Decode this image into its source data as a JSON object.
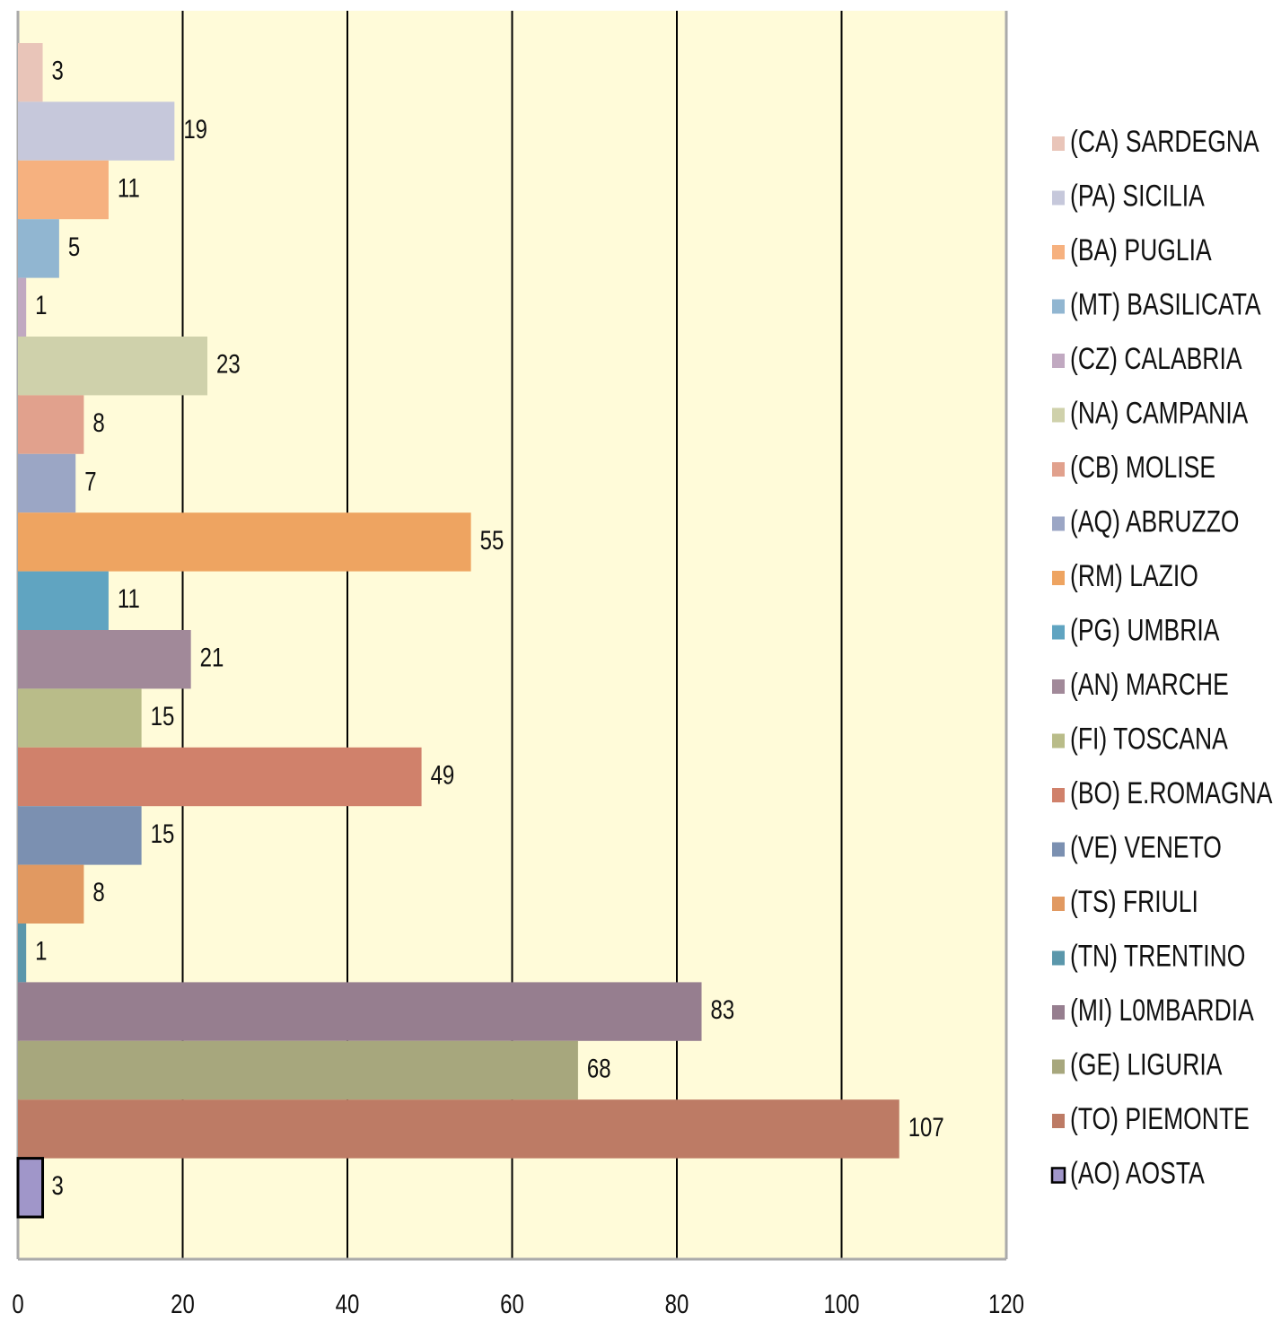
{
  "chart_data": {
    "type": "bar",
    "orientation": "horizontal",
    "xlim": [
      0,
      120
    ],
    "xticks": [
      0,
      20,
      40,
      60,
      80,
      100,
      120
    ],
    "grid": true,
    "legend": "right",
    "background": "#fffbd9",
    "series": [
      {
        "name": "(CA) SARDEGNA",
        "color": "#e9c5b9",
        "values": [
          3
        ]
      },
      {
        "name": "(PA) SICILIA",
        "color": "#c6c8db",
        "values": [
          19
        ]
      },
      {
        "name": "(BA) PUGLIA",
        "color": "#f6b17f",
        "values": [
          11
        ]
      },
      {
        "name": "(MT) BASILICATA",
        "color": "#91b6d1",
        "values": [
          5
        ]
      },
      {
        "name": "(CZ) CALABRIA",
        "color": "#c1a9c1",
        "values": [
          1
        ]
      },
      {
        "name": "(NA) CAMPANIA",
        "color": "#cfd1ab",
        "values": [
          23
        ]
      },
      {
        "name": "(CB) MOLISE",
        "color": "#e1a18d",
        "values": [
          8
        ]
      },
      {
        "name": "(AQ) ABRUZZO",
        "color": "#9ba6c5",
        "values": [
          7
        ]
      },
      {
        "name": "(RM) LAZIO",
        "color": "#eea461",
        "values": [
          55
        ]
      },
      {
        "name": "(PG) UMBRIA",
        "color": "#60a4c1",
        "values": [
          11
        ]
      },
      {
        "name": "(AN) MARCHE",
        "color": "#a18999",
        "values": [
          21
        ]
      },
      {
        "name": "(FI) TOSCANA",
        "color": "#b9bc89",
        "values": [
          15
        ]
      },
      {
        "name": "(BO) E.ROMAGNA",
        "color": "#d0816b",
        "values": [
          49
        ]
      },
      {
        "name": "(VE) VENETO",
        "color": "#7b90b1",
        "values": [
          15
        ]
      },
      {
        "name": "(TS) FRIULI",
        "color": "#e19961",
        "values": [
          8
        ]
      },
      {
        "name": "(TN) TRENTINO",
        "color": "#5b97ab",
        "values": [
          1
        ]
      },
      {
        "name": "(MI) L0MBARDIA",
        "color": "#967e8f",
        "values": [
          83
        ]
      },
      {
        "name": "(GE) LIGURIA",
        "color": "#a7a77d",
        "values": [
          68
        ]
      },
      {
        "name": "(TO) PIEMONTE",
        "color": "#bd7b65",
        "values": [
          107
        ]
      },
      {
        "name": "(AO) AOSTA",
        "color": "#a096c9",
        "edgecolor": "#000000",
        "values": [
          3
        ]
      }
    ]
  }
}
